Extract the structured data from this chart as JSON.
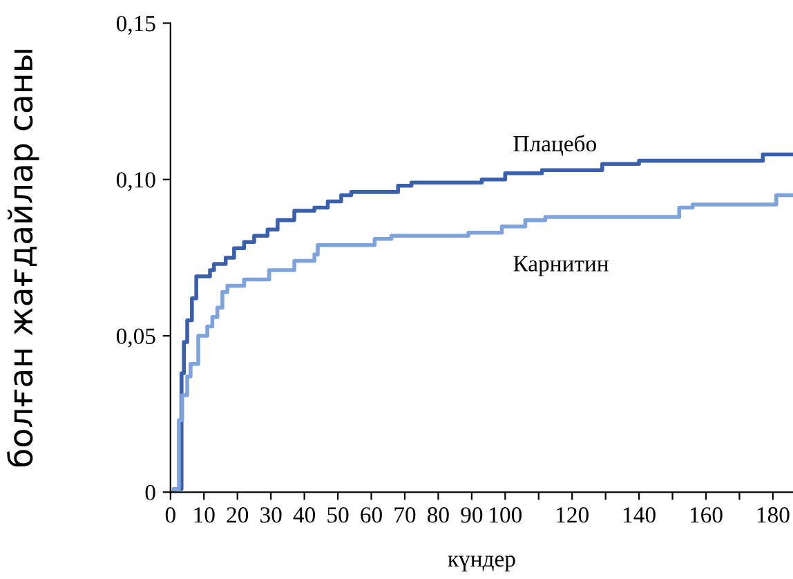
{
  "chart_data": {
    "type": "step",
    "xlabel": "күндер",
    "ylabel": "болған жағдайлар саны",
    "xlim": [
      0,
      186
    ],
    "ylim": [
      0,
      0.15
    ],
    "xticks": [
      0,
      10,
      20,
      30,
      40,
      50,
      60,
      70,
      80,
      90,
      100,
      {
        "value": 110,
        "label": null
      },
      120,
      {
        "value": 130,
        "label": null
      },
      140,
      {
        "value": 150,
        "label": null
      },
      160,
      {
        "value": 170,
        "label": null
      },
      180
    ],
    "yticks": [
      {
        "value": 0,
        "label": "0"
      },
      {
        "value": 0.05,
        "label": "0,05"
      },
      {
        "value": 0.1,
        "label": "0,10"
      },
      {
        "value": 0.15,
        "label": "0,15"
      }
    ],
    "grid": false,
    "legend": false,
    "marker": "none",
    "line_style": "solid",
    "series": [
      {
        "name": "Плацебо",
        "color": "#3a5fad",
        "x": [
          0,
          1,
          3.3,
          4,
          5,
          6.4,
          7.7,
          11.8,
          13,
          16.5,
          19,
          22,
          25,
          29,
          32,
          37,
          43,
          47,
          51,
          54,
          68,
          72,
          93,
          100,
          111,
          129,
          140,
          177,
          186
        ],
        "values": [
          0,
          0.001,
          0.038,
          0.048,
          0.055,
          0.062,
          0.069,
          0.071,
          0.073,
          0.075,
          0.078,
          0.08,
          0.082,
          0.084,
          0.087,
          0.09,
          0.091,
          0.093,
          0.095,
          0.096,
          0.098,
          0.099,
          0.1,
          0.102,
          0.103,
          0.105,
          0.106,
          0.108,
          0.108
        ]
      },
      {
        "name": "Карнитин",
        "color": "#7ea3dc",
        "x": [
          0,
          1,
          2.5,
          3.5,
          5,
          6,
          8.3,
          11,
          12.5,
          14,
          15.5,
          17,
          22,
          29.5,
          37,
          43,
          44,
          61,
          66,
          89,
          99,
          106,
          112,
          152,
          156,
          181,
          186
        ],
        "values": [
          0,
          0.001,
          0.023,
          0.031,
          0.037,
          0.041,
          0.05,
          0.053,
          0.056,
          0.059,
          0.064,
          0.066,
          0.068,
          0.071,
          0.074,
          0.076,
          0.079,
          0.081,
          0.082,
          0.083,
          0.085,
          0.087,
          0.088,
          0.091,
          0.092,
          0.095,
          0.095
        ]
      }
    ]
  }
}
